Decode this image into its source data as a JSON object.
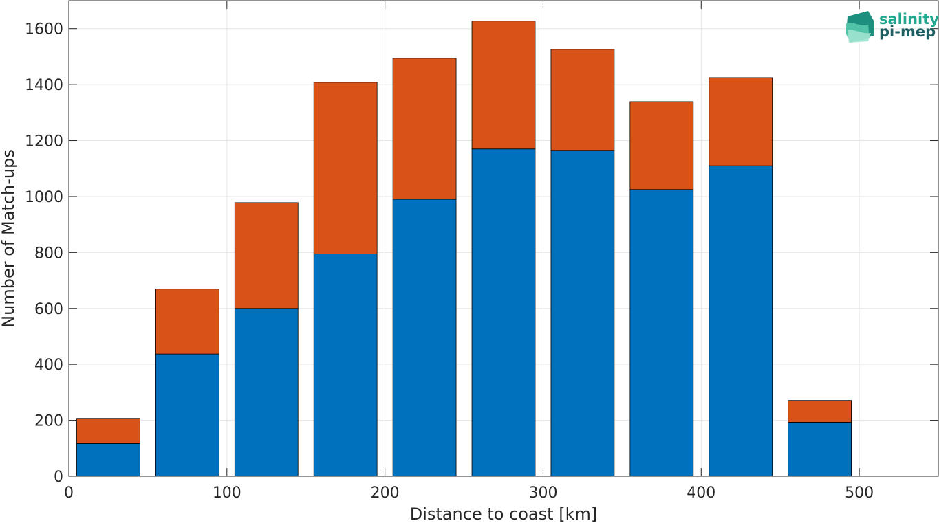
{
  "chart_data": {
    "type": "bar",
    "stacked": true,
    "x": [
      25,
      75,
      125,
      175,
      225,
      275,
      325,
      375,
      425,
      475,
      525
    ],
    "series": [
      {
        "values": [
          117,
          437,
          600,
          795,
          990,
          1170,
          1165,
          1025,
          1110,
          193,
          0
        ],
        "color": "#0072bd"
      },
      {
        "values": [
          90,
          232,
          378,
          613,
          504,
          457,
          361,
          314,
          315,
          78,
          0
        ],
        "color": "#d95319"
      }
    ],
    "xlabel": "Distance to coast [km]",
    "ylabel": "Number of Match-ups",
    "xlim": [
      0,
      550
    ],
    "ylim": [
      0,
      1700
    ],
    "xticks": [
      0,
      100,
      200,
      300,
      400,
      500
    ],
    "yticks": [
      0,
      200,
      400,
      600,
      800,
      1000,
      1200,
      1400,
      1600
    ],
    "bar_width": 40,
    "grid": true
  },
  "logo": {
    "line1": "salinity",
    "line2": "pi-mep",
    "color1": "#20a98f",
    "color2": "#1d5f62"
  }
}
